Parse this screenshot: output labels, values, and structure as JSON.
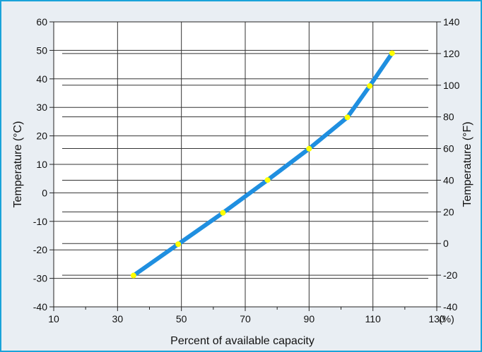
{
  "chart_data": {
    "type": "line",
    "xlabel": "Percent of available capacity",
    "x_unit": "(%)",
    "ylabel": "Temperature (°C)",
    "y2label": "Temperature (°F)",
    "xlim": [
      10,
      130
    ],
    "ylim": [
      -40,
      60
    ],
    "y2lim": [
      -40,
      140
    ],
    "x_ticks": [
      10,
      30,
      50,
      70,
      90,
      110,
      130
    ],
    "y_ticks": [
      -40,
      -30,
      -20,
      -10,
      0,
      10,
      20,
      30,
      40,
      50,
      60
    ],
    "y2_ticks": [
      -40,
      -20,
      0,
      20,
      40,
      60,
      80,
      100,
      120,
      140
    ],
    "grid": true,
    "series": [
      {
        "x": [
          35,
          49,
          63,
          77,
          90,
          102,
          109,
          116
        ],
        "y": [
          -29,
          -18,
          -7,
          4.5,
          15.5,
          26.5,
          37.5,
          49
        ],
        "color": "#1f8fe0",
        "marker_color": "#ffff00"
      }
    ]
  }
}
